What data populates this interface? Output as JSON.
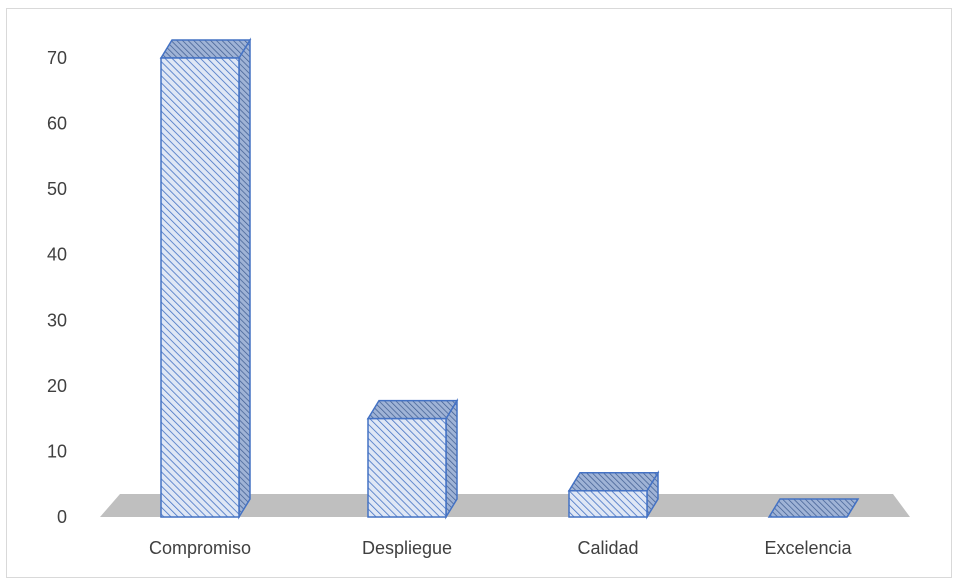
{
  "chart_data": {
    "type": "bar",
    "style": "3d-column",
    "categories": [
      "Compromiso",
      "Despliegue",
      "Calidad",
      "Excelencia"
    ],
    "values": [
      70,
      15,
      4,
      0
    ],
    "title": "",
    "xlabel": "",
    "ylabel": "",
    "ylim": [
      0,
      70
    ],
    "yticks": [
      0,
      10,
      20,
      30,
      40,
      50,
      60,
      70
    ],
    "grid": false,
    "legend": "none",
    "colors": {
      "bar_stroke": "#4472c4",
      "bar_hatch": "#4472c4",
      "bar_fill": "#dfe7f5",
      "side_fill": "#8ea4c9",
      "floor": "#bfbfbf",
      "text": "#404040"
    }
  }
}
